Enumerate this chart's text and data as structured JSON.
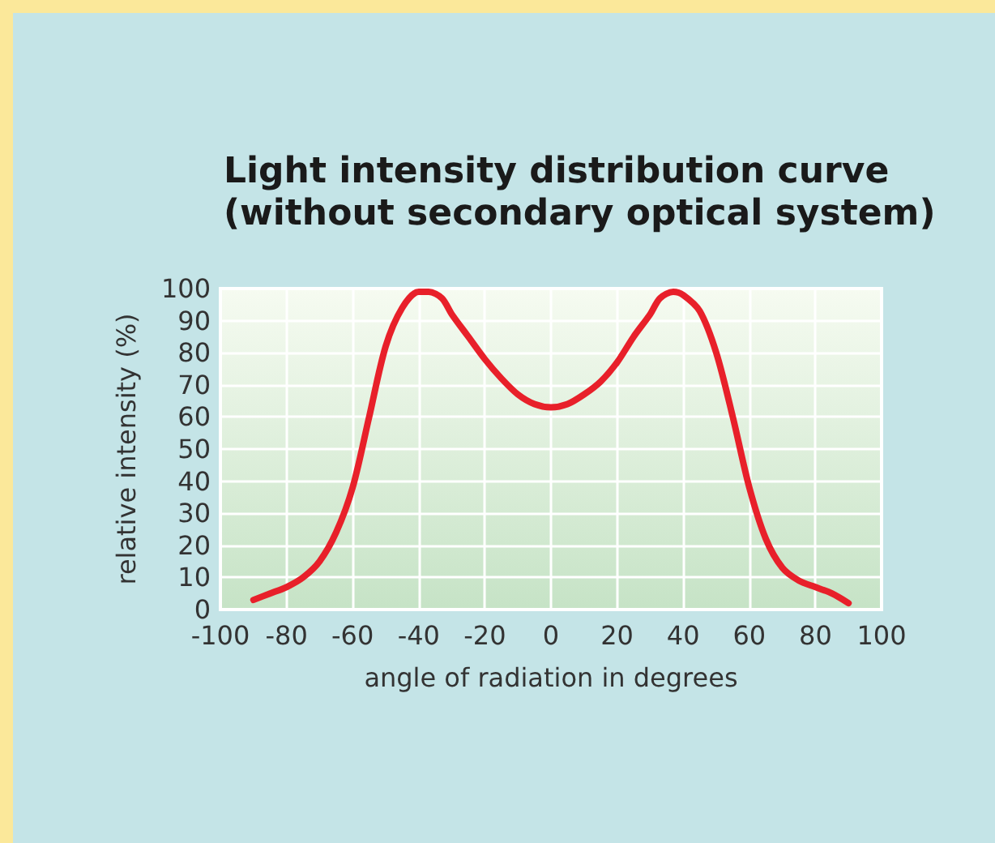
{
  "chart_data": {
    "type": "line",
    "title": "Light intensity distribution curve\n(without secondary optical system)",
    "xlabel": "angle of radiation in degrees",
    "ylabel": "relative intensity (%)",
    "x": [
      -90,
      -85,
      -80,
      -75,
      -70,
      -65,
      -60,
      -55,
      -50,
      -45,
      -40,
      -37,
      -33,
      -30,
      -25,
      -20,
      -15,
      -10,
      -5,
      0,
      5,
      10,
      15,
      20,
      25,
      30,
      33,
      37,
      40,
      45,
      50,
      55,
      60,
      65,
      70,
      75,
      80,
      85,
      90
    ],
    "series": [
      {
        "color": "#e8202a",
        "values": [
          3,
          5,
          7,
          10,
          15,
          24,
          38,
          60,
          82,
          94,
          99,
          99,
          97,
          92,
          85,
          78,
          72,
          67,
          64,
          63,
          64,
          67,
          71,
          77,
          85,
          92,
          97,
          99,
          98,
          93,
          80,
          60,
          38,
          22,
          13,
          9,
          7,
          5,
          2
        ]
      }
    ],
    "xlim": [
      -100,
      100
    ],
    "xticks": [
      -100,
      -80,
      -60,
      -40,
      -20,
      0,
      20,
      40,
      60,
      80,
      100
    ],
    "ylim": [
      0,
      100
    ],
    "yticks": [
      0,
      10,
      20,
      30,
      40,
      50,
      60,
      70,
      80,
      90,
      100
    ],
    "grid": true,
    "marker": "none",
    "line_style": "solid"
  }
}
